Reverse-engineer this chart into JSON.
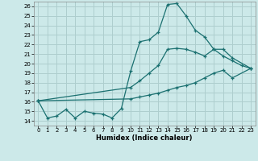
{
  "xlabel": "Humidex (Indice chaleur)",
  "xlim": [
    -0.5,
    23.5
  ],
  "ylim": [
    13.5,
    26.5
  ],
  "xticks": [
    0,
    1,
    2,
    3,
    4,
    5,
    6,
    7,
    8,
    9,
    10,
    11,
    12,
    13,
    14,
    15,
    16,
    17,
    18,
    19,
    20,
    21,
    22,
    23
  ],
  "yticks": [
    14,
    15,
    16,
    17,
    18,
    19,
    20,
    21,
    22,
    23,
    24,
    25,
    26
  ],
  "bg_color": "#cce9e9",
  "grid_color": "#aecece",
  "line_color": "#1a7070",
  "line1_x": [
    0,
    1,
    2,
    3,
    4,
    5,
    6,
    7,
    8,
    9,
    10,
    11,
    12,
    13,
    14,
    15,
    16,
    17,
    18,
    19,
    20,
    21,
    22,
    23
  ],
  "line1_y": [
    16.1,
    14.3,
    14.5,
    15.2,
    14.3,
    15.0,
    14.8,
    14.7,
    14.3,
    15.3,
    19.2,
    22.3,
    22.5,
    23.3,
    26.2,
    26.3,
    25.0,
    23.5,
    22.8,
    21.5,
    20.8,
    20.3,
    19.8,
    19.5
  ],
  "line2_x": [
    0,
    10,
    11,
    12,
    13,
    14,
    15,
    16,
    17,
    18,
    19,
    20,
    21,
    23
  ],
  "line2_y": [
    16.1,
    17.5,
    18.2,
    19.0,
    19.8,
    21.5,
    21.6,
    21.5,
    21.2,
    20.8,
    21.5,
    21.5,
    20.6,
    19.5
  ],
  "line3_x": [
    0,
    10,
    11,
    12,
    13,
    14,
    15,
    16,
    17,
    18,
    19,
    20,
    21,
    23
  ],
  "line3_y": [
    16.1,
    16.3,
    16.5,
    16.7,
    16.9,
    17.2,
    17.5,
    17.7,
    18.0,
    18.5,
    19.0,
    19.3,
    18.5,
    19.5
  ]
}
